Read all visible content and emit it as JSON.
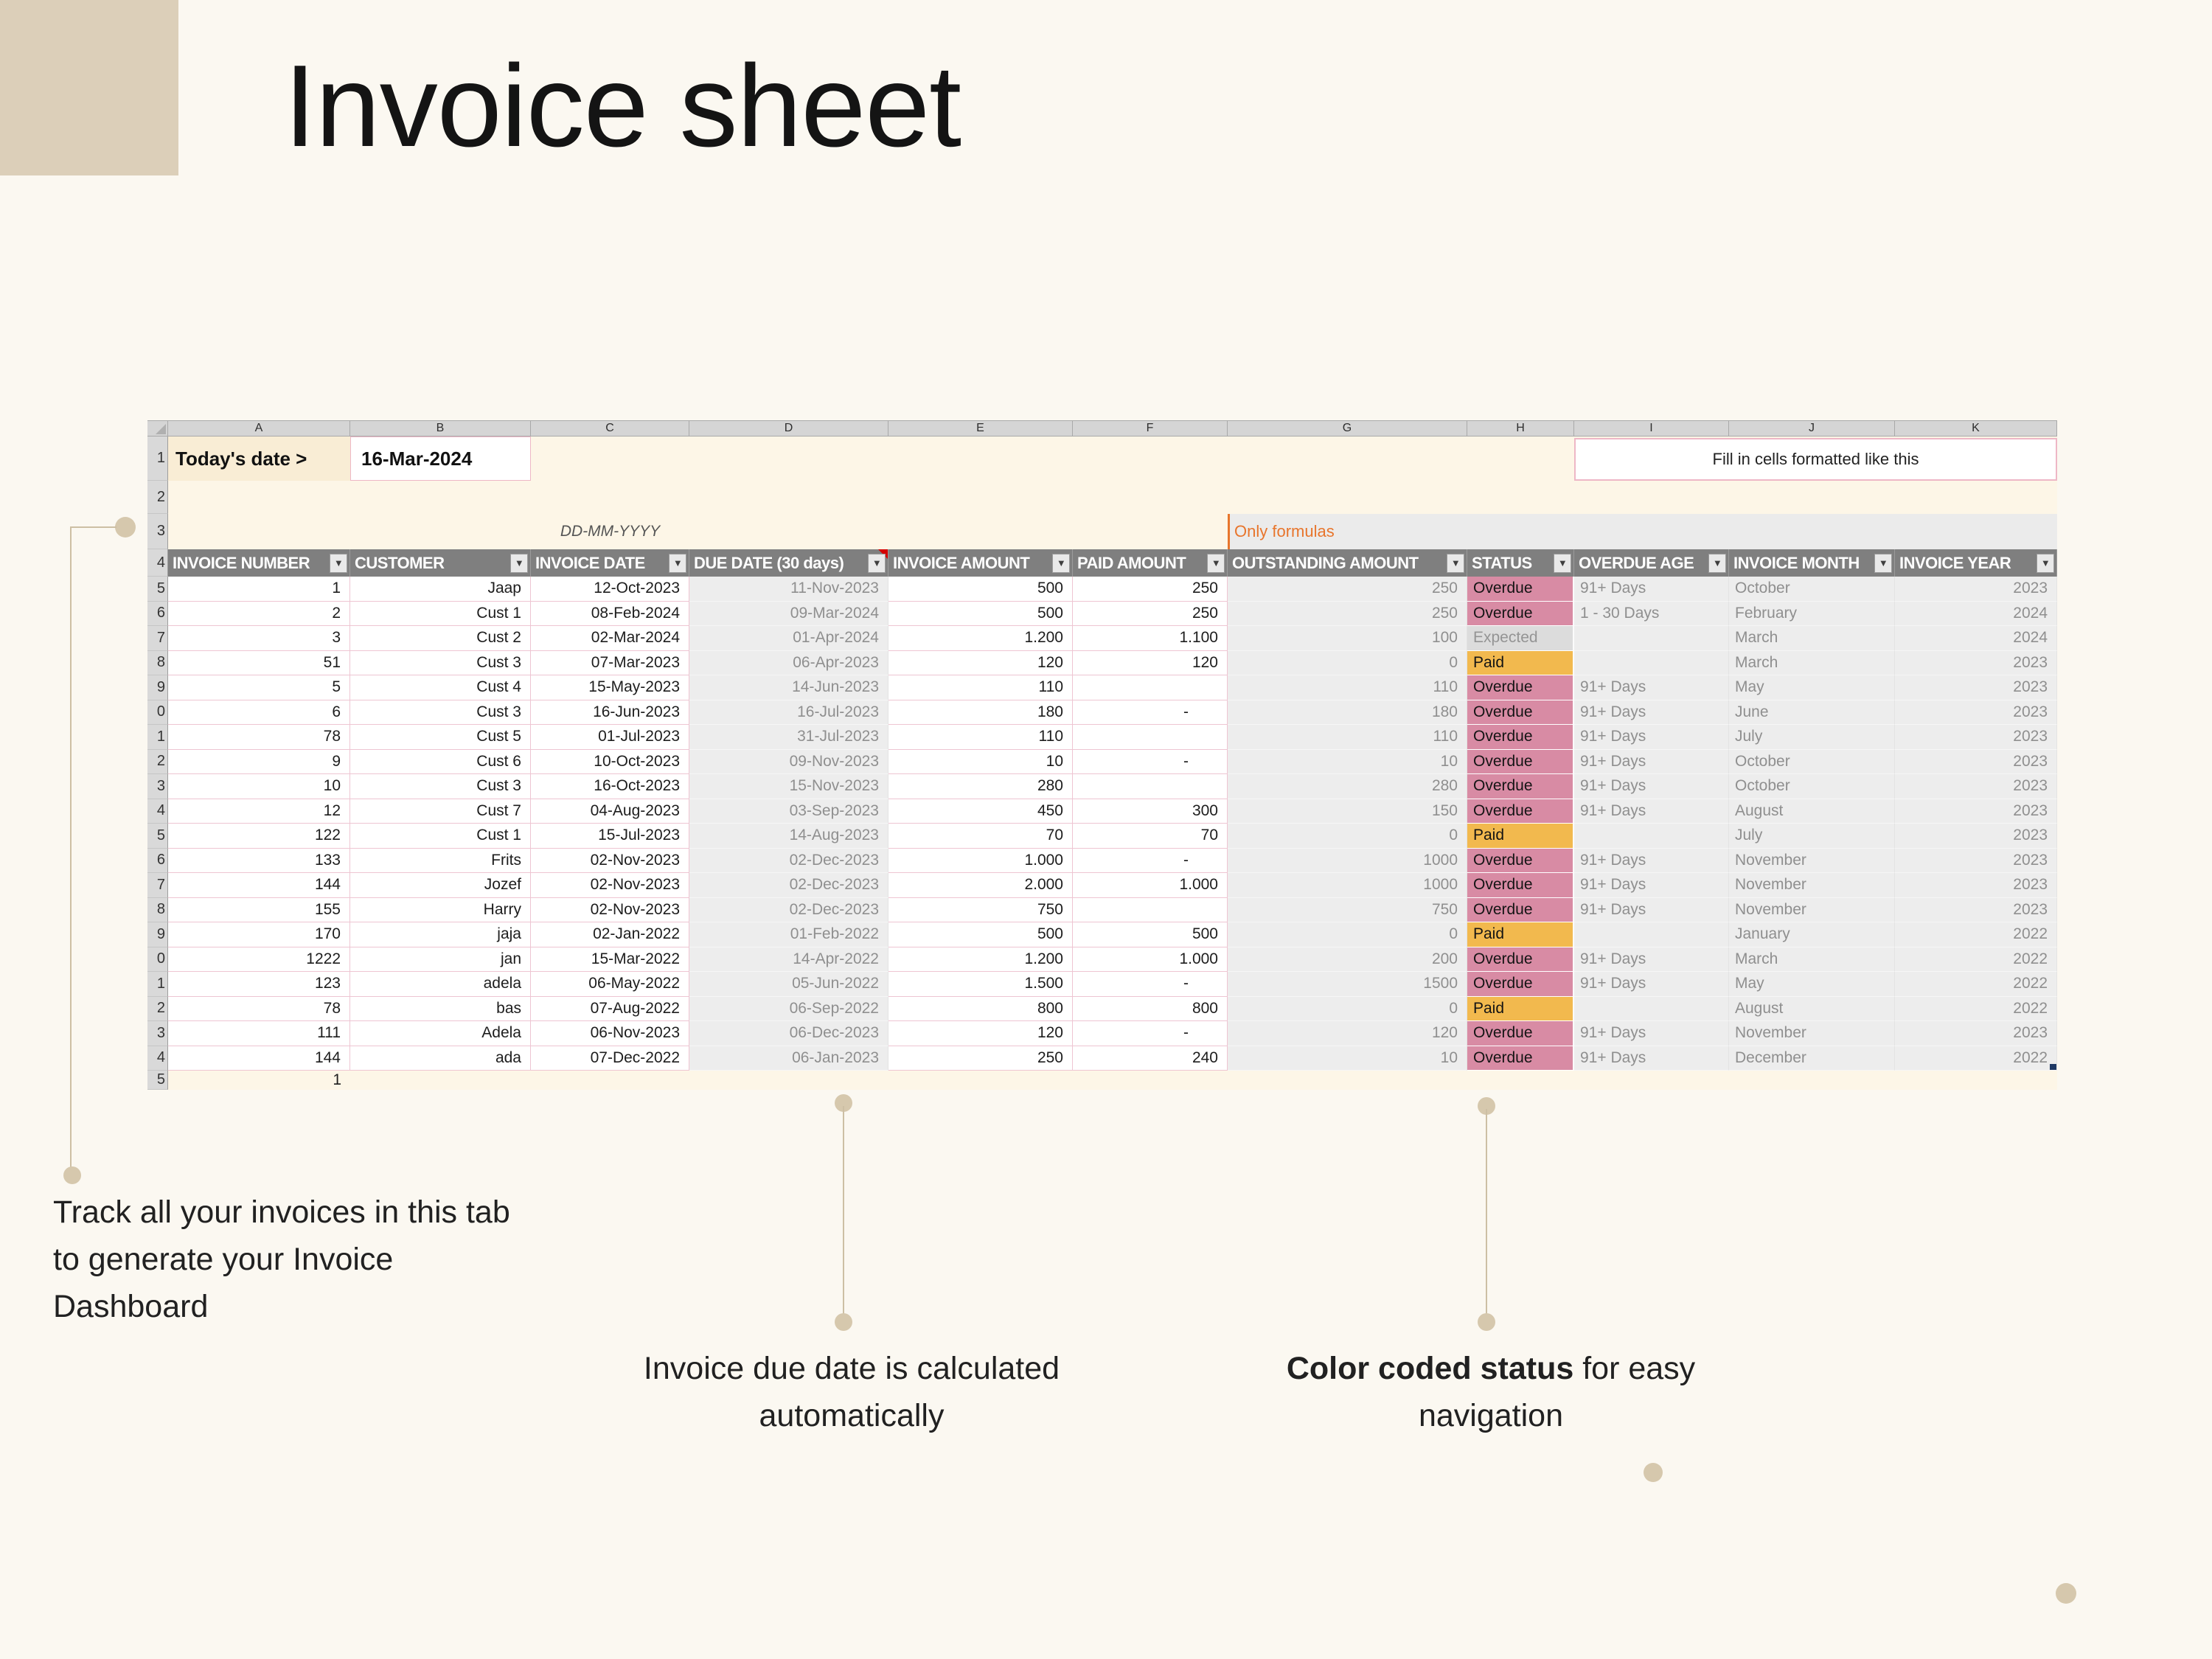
{
  "slide": {
    "title": "Invoice sheet",
    "background": "#fbf8f1",
    "accent_color": "#dccfb9",
    "connector_color": "#cdbfa4"
  },
  "annotations": {
    "left": {
      "lines": [
        "Track all your invoices in this tab",
        "to generate your Invoice",
        "Dashboard"
      ]
    },
    "middle": {
      "lines": [
        "Invoice due date is calculated",
        "automatically"
      ]
    },
    "right": {
      "line1_bold": "Color coded status",
      "line1_rest": " for easy",
      "line2": "navigation"
    }
  },
  "sheet": {
    "today_label": "Today's date >",
    "today_value": "16-Mar-2024",
    "date_format_note": "DD-MM-YYYY",
    "formulas_note": "Only formulas",
    "fill_note": "Fill in cells formatted like this",
    "column_letters": [
      "A",
      "B",
      "C",
      "D",
      "E",
      "F",
      "G",
      "H",
      "I",
      "J",
      "K"
    ],
    "headers": [
      {
        "letter": "A",
        "label": "INVOICE NUMBER"
      },
      {
        "letter": "B",
        "label": "CUSTOMER"
      },
      {
        "letter": "C",
        "label": "INVOICE DATE"
      },
      {
        "letter": "D",
        "label": "DUE DATE (30 days)",
        "note_marker": true
      },
      {
        "letter": "E",
        "label": "INVOICE AMOUNT"
      },
      {
        "letter": "F",
        "label": "PAID AMOUNT"
      },
      {
        "letter": "G",
        "label": "OUTSTANDING AMOUNT"
      },
      {
        "letter": "H",
        "label": "STATUS"
      },
      {
        "letter": "I",
        "label": "OVERDUE AGE"
      },
      {
        "letter": "J",
        "label": "INVOICE MONTH"
      },
      {
        "letter": "K",
        "label": "INVOICE YEAR"
      }
    ],
    "top_row_numbers": [
      "1",
      "2",
      "3"
    ],
    "header_row_number": "4",
    "row_numbers": [
      "5",
      "6",
      "7",
      "8",
      "9",
      "0",
      "1",
      "2",
      "3",
      "4",
      "5",
      "6",
      "7",
      "8",
      "9",
      "0",
      "1",
      "2",
      "3",
      "4"
    ],
    "last_row_number": "5",
    "last_row_value": "1",
    "status_colors": {
      "Overdue": "#d88ba4",
      "Paid": "#f2b94e",
      "Expected": "#dcdcdc"
    },
    "rows": [
      [
        "1",
        "Jaap",
        "12-Oct-2023",
        "11-Nov-2023",
        "500",
        "250",
        "250",
        "Overdue",
        "91+ Days",
        "October",
        "2023"
      ],
      [
        "2",
        "Cust 1",
        "08-Feb-2024",
        "09-Mar-2024",
        "500",
        "250",
        "250",
        "Overdue",
        "1 - 30 Days",
        "February",
        "2024"
      ],
      [
        "3",
        "Cust 2",
        "02-Mar-2024",
        "01-Apr-2024",
        "1.200",
        "1.100",
        "100",
        "Expected",
        "",
        "March",
        "2024"
      ],
      [
        "51",
        "Cust 3",
        "07-Mar-2023",
        "06-Apr-2023",
        "120",
        "120",
        "0",
        "Paid",
        "",
        "March",
        "2023"
      ],
      [
        "5",
        "Cust 4",
        "15-May-2023",
        "14-Jun-2023",
        "110",
        "",
        "110",
        "Overdue",
        "91+ Days",
        "May",
        "2023"
      ],
      [
        "6",
        "Cust 3",
        "16-Jun-2023",
        "16-Jul-2023",
        "180",
        "-",
        "180",
        "Overdue",
        "91+ Days",
        "June",
        "2023"
      ],
      [
        "78",
        "Cust 5",
        "01-Jul-2023",
        "31-Jul-2023",
        "110",
        "",
        "110",
        "Overdue",
        "91+ Days",
        "July",
        "2023"
      ],
      [
        "9",
        "Cust 6",
        "10-Oct-2023",
        "09-Nov-2023",
        "10",
        "-",
        "10",
        "Overdue",
        "91+ Days",
        "October",
        "2023"
      ],
      [
        "10",
        "Cust 3",
        "16-Oct-2023",
        "15-Nov-2023",
        "280",
        "",
        "280",
        "Overdue",
        "91+ Days",
        "October",
        "2023"
      ],
      [
        "12",
        "Cust 7",
        "04-Aug-2023",
        "03-Sep-2023",
        "450",
        "300",
        "150",
        "Overdue",
        "91+ Days",
        "August",
        "2023"
      ],
      [
        "122",
        "Cust 1",
        "15-Jul-2023",
        "14-Aug-2023",
        "70",
        "70",
        "0",
        "Paid",
        "",
        "July",
        "2023"
      ],
      [
        "133",
        "Frits",
        "02-Nov-2023",
        "02-Dec-2023",
        "1.000",
        "-",
        "1000",
        "Overdue",
        "91+ Days",
        "November",
        "2023"
      ],
      [
        "144",
        "Jozef",
        "02-Nov-2023",
        "02-Dec-2023",
        "2.000",
        "1.000",
        "1000",
        "Overdue",
        "91+ Days",
        "November",
        "2023"
      ],
      [
        "155",
        "Harry",
        "02-Nov-2023",
        "02-Dec-2023",
        "750",
        "",
        "750",
        "Overdue",
        "91+ Days",
        "November",
        "2023"
      ],
      [
        "170",
        "jaja",
        "02-Jan-2022",
        "01-Feb-2022",
        "500",
        "500",
        "0",
        "Paid",
        "",
        "January",
        "2022"
      ],
      [
        "1222",
        "jan",
        "15-Mar-2022",
        "14-Apr-2022",
        "1.200",
        "1.000",
        "200",
        "Overdue",
        "91+ Days",
        "March",
        "2022"
      ],
      [
        "123",
        "adela",
        "06-May-2022",
        "05-Jun-2022",
        "1.500",
        "-",
        "1500",
        "Overdue",
        "91+ Days",
        "May",
        "2022"
      ],
      [
        "78",
        "bas",
        "07-Aug-2022",
        "06-Sep-2022",
        "800",
        "800",
        "0",
        "Paid",
        "",
        "August",
        "2022"
      ],
      [
        "111",
        "Adela",
        "06-Nov-2023",
        "06-Dec-2023",
        "120",
        "-",
        "120",
        "Overdue",
        "91+ Days",
        "November",
        "2023"
      ],
      [
        "144",
        "ada",
        "07-Dec-2022",
        "06-Jan-2023",
        "250",
        "240",
        "10",
        "Overdue",
        "91+ Days",
        "December",
        "2022"
      ]
    ]
  }
}
